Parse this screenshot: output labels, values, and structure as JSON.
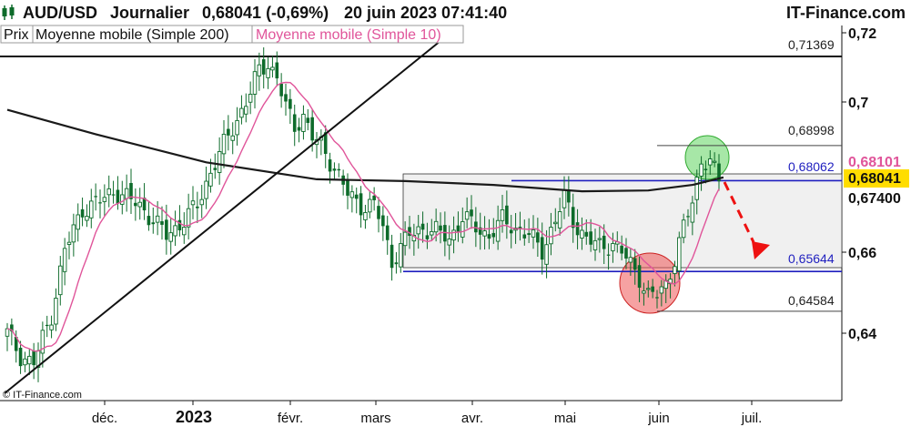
{
  "header": {
    "symbol": "AUD/USD",
    "period": "Journalier",
    "price_change": "0,68041 (-0,69%)",
    "datetime": "20 juin 2023 07:41:40",
    "brand": "IT-Finance.com"
  },
  "legend": {
    "price": "Prix",
    "ma200": "Moyenne mobile (Simple 200)",
    "ma10": "Moyenne mobile (Simple 10)"
  },
  "copyright": "© IT-Finance.com",
  "colors": {
    "candle": "#0d6b2a",
    "ma200": "#1a1a1a",
    "ma10": "#e0559a",
    "channel": "#1f1fbf",
    "range_fill": "#f0f0f0",
    "green_circle": "#5fd35f",
    "red_circle": "#ee5555",
    "arrow": "#ee1111",
    "current_price_bg": "#ffdd00"
  },
  "chart_data": {
    "type": "candlestick",
    "x_axis_labels": [
      "déc.",
      "2023",
      "févr.",
      "mars",
      "avr.",
      "mai",
      "juin",
      "juil."
    ],
    "y_axis_labels": [
      "0,72",
      "0,7",
      "0,66",
      "0,64"
    ],
    "ylim": [
      0.625,
      0.723
    ],
    "grid": false,
    "current_price": "0,68041",
    "ma10_last": "0,68101",
    "ma200_last": "0,67400",
    "levels": [
      {
        "label": "0,71369",
        "value": 0.71369
      },
      {
        "label": "0,68998",
        "value": 0.68998
      },
      {
        "label": "0,68062",
        "value": 0.68062
      },
      {
        "label": "0,65644",
        "value": 0.65644
      },
      {
        "label": "0,64584",
        "value": 0.64584
      }
    ],
    "range_box": {
      "high": 0.68062,
      "low": 0.65644
    },
    "annotations": [
      "uptrend line",
      "resistance 0,71369",
      "green circle: breakout top",
      "red circle: support test",
      "red dashed arrow: expected pullback"
    ]
  }
}
